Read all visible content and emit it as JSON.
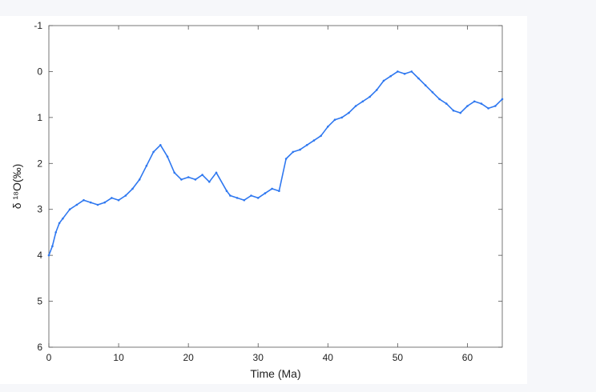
{
  "chart_data": {
    "type": "line",
    "title": "",
    "xlabel": "Time (Ma)",
    "ylabel": "δ ¹⁸O(‰)",
    "xlim": [
      0,
      65
    ],
    "ylim": [
      6,
      -1
    ],
    "y_inverted": true,
    "grid": false,
    "x_ticks": [
      0,
      10,
      20,
      30,
      40,
      50,
      60
    ],
    "y_ticks": [
      -1,
      0,
      1,
      2,
      3,
      4,
      5,
      6
    ],
    "series_color": "#2f78f0",
    "series": [
      {
        "x": [
          0,
          0.5,
          1,
          1.5,
          2,
          3,
          4,
          5,
          6,
          7,
          8,
          9,
          10,
          11,
          12,
          13,
          14,
          15,
          16,
          17,
          18,
          19,
          20,
          21,
          22,
          23,
          24,
          25.5,
          26,
          27,
          28,
          29,
          30,
          31,
          32,
          33,
          34,
          35,
          36,
          37,
          38,
          39,
          40,
          41,
          42,
          43,
          44,
          45,
          46,
          47,
          48,
          49,
          50,
          51,
          52,
          53,
          54,
          55,
          56,
          57,
          58,
          59,
          60,
          61,
          62,
          63,
          64,
          65
        ],
        "values": [
          4.0,
          3.8,
          3.5,
          3.3,
          3.2,
          3.0,
          2.9,
          2.8,
          2.85,
          2.9,
          2.85,
          2.75,
          2.8,
          2.7,
          2.55,
          2.35,
          2.05,
          1.75,
          1.6,
          1.85,
          2.2,
          2.35,
          2.3,
          2.35,
          2.25,
          2.4,
          2.2,
          2.6,
          2.7,
          2.75,
          2.8,
          2.7,
          2.75,
          2.65,
          2.55,
          2.6,
          1.9,
          1.75,
          1.7,
          1.6,
          1.5,
          1.4,
          1.2,
          1.05,
          1.0,
          0.9,
          0.75,
          0.65,
          0.55,
          0.4,
          0.2,
          0.1,
          0.0,
          0.05,
          0.0,
          0.15,
          0.3,
          0.45,
          0.6,
          0.7,
          0.85,
          0.9,
          0.75,
          0.65,
          0.7,
          0.8,
          0.75,
          0.6
        ]
      }
    ]
  }
}
